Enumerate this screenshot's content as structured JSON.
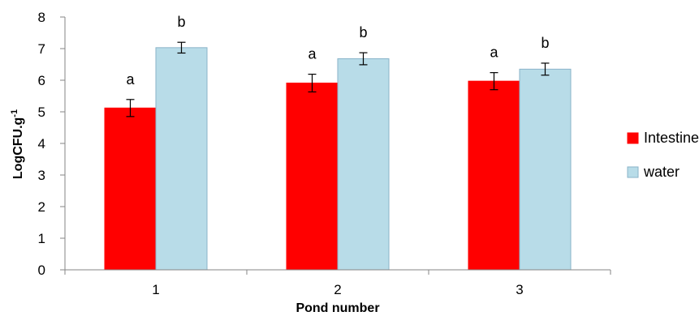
{
  "chart_data": {
    "type": "bar",
    "title": "",
    "xlabel": "Pond number",
    "ylabel_main": "LogCFU.g",
    "ylabel_sup": "-1",
    "ylim": [
      0,
      8
    ],
    "yticks": [
      "0",
      "1",
      "2",
      "3",
      "4",
      "5",
      "6",
      "7",
      "8"
    ],
    "categories": [
      "1",
      "2",
      "3"
    ],
    "legend_position": "right",
    "grid": false,
    "series": [
      {
        "name": "Intestine",
        "color": "#ff0000",
        "values": [
          5.12,
          5.91,
          5.97
        ],
        "errors": [
          0.27,
          0.28,
          0.27
        ],
        "letters": [
          "a",
          "a",
          "a"
        ]
      },
      {
        "name": "water",
        "color": "#b8dce8",
        "values": [
          7.03,
          6.68,
          6.35
        ],
        "errors": [
          0.17,
          0.19,
          0.19
        ],
        "letters": [
          "b",
          "b",
          "b"
        ]
      }
    ]
  }
}
